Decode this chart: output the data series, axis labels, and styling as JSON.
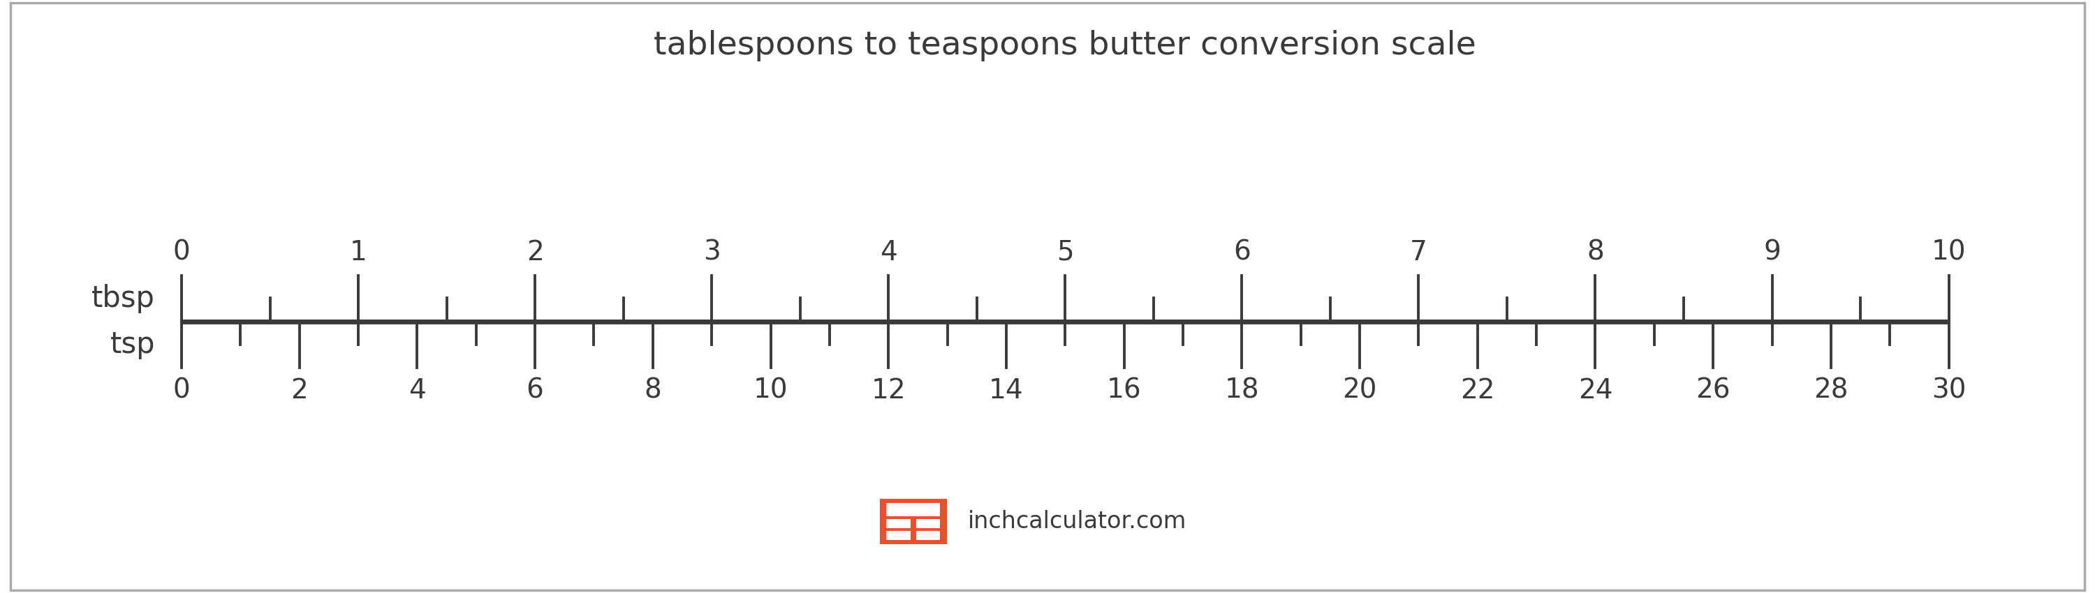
{
  "title": "tablespoons to teaspoons butter conversion scale",
  "title_fontsize": 34,
  "title_color": "#3a3a3a",
  "background_color": "#ffffff",
  "border_color": "#aaaaaa",
  "scale_color": "#3a3a3a",
  "scale_linewidth": 5.0,
  "tbsp_label": "tbsp",
  "tsp_label": "tsp",
  "label_fontsize": 30,
  "tick_label_fontsize": 28,
  "tbsp_max": 10,
  "tsp_max": 30,
  "conversion_factor": 3,
  "tbsp_major_ticks": [
    0,
    1,
    2,
    3,
    4,
    5,
    6,
    7,
    8,
    9,
    10
  ],
  "tsp_major_ticks": [
    0,
    2,
    4,
    6,
    8,
    10,
    12,
    14,
    16,
    18,
    20,
    22,
    24,
    26,
    28,
    30
  ],
  "logo_color": "#e8512a",
  "logo_text": "inchcalculator.com",
  "logo_text_color": "#3a3a3a",
  "logo_fontsize": 24,
  "tbsp_major_height_up": 0.55,
  "tbsp_minor_height_up": 0.28,
  "tsp_major_height_down": 0.55,
  "tsp_minor_height_down": 0.28,
  "line_y": 0.0,
  "xlim_left": -1.0,
  "xlim_right": 10.8,
  "ylim_bottom": -3.2,
  "ylim_top": 3.8
}
